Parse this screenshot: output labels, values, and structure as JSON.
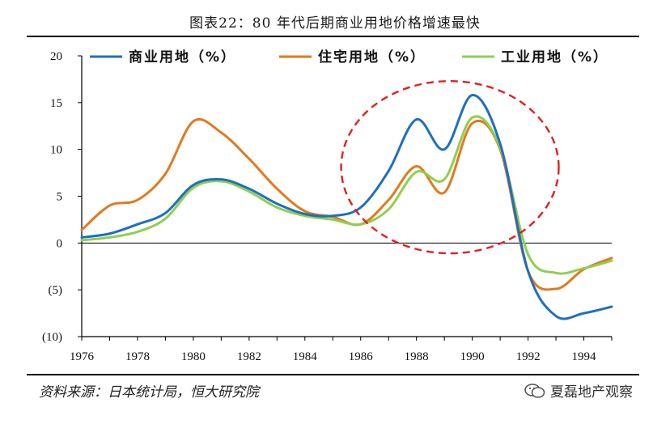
{
  "title": "图表22：80 年代后期商业用地价格增速最快",
  "source": "资料来源：日本统计局，恒大研究院",
  "watermark": "夏磊地产观察",
  "colors": {
    "commercial": "#1f6fbf",
    "residential": "#e07a1f",
    "industrial": "#8fcf4f",
    "negative_tick": "#c00000",
    "ellipse": "#e02020"
  },
  "chart_data": {
    "type": "line",
    "x": [
      1976,
      1977,
      1978,
      1979,
      1980,
      1981,
      1982,
      1983,
      1984,
      1985,
      1986,
      1987,
      1988,
      1989,
      1990,
      1991,
      1992,
      1993,
      1994,
      1995
    ],
    "series": [
      {
        "name": "商业用地（%）",
        "color": "#1f6fbf",
        "values": [
          0.6,
          1.0,
          2.0,
          3.2,
          6.2,
          6.8,
          5.8,
          4.2,
          3.1,
          2.9,
          3.8,
          7.7,
          13.2,
          10.0,
          15.8,
          10.6,
          -3.0,
          -7.8,
          -7.5,
          -6.8
        ]
      },
      {
        "name": "住宅用地（%）",
        "color": "#e07a1f",
        "values": [
          1.4,
          4.0,
          4.6,
          7.4,
          13.0,
          11.8,
          9.0,
          5.8,
          3.4,
          2.8,
          2.0,
          4.6,
          8.2,
          5.4,
          12.8,
          10.0,
          -3.0,
          -4.9,
          -2.8,
          -1.6
        ]
      },
      {
        "name": "工业用地（%）",
        "color": "#8fcf4f",
        "values": [
          0.3,
          0.6,
          1.2,
          2.6,
          5.9,
          6.6,
          5.5,
          3.8,
          2.9,
          2.5,
          2.0,
          3.6,
          7.6,
          6.8,
          13.4,
          10.2,
          -1.2,
          -3.2,
          -2.7,
          -1.9
        ]
      }
    ],
    "x_ticks": [
      1976,
      1978,
      1980,
      1982,
      1984,
      1986,
      1988,
      1990,
      1992,
      1994
    ],
    "y_ticks": [
      {
        "value": 20,
        "label": "20"
      },
      {
        "value": 15,
        "label": "15"
      },
      {
        "value": 10,
        "label": "10"
      },
      {
        "value": 5,
        "label": "5"
      },
      {
        "value": 0,
        "label": "0"
      },
      {
        "value": -5,
        "label": "(5)"
      },
      {
        "value": -10,
        "label": "(10)"
      }
    ],
    "xlim": [
      1976,
      1995
    ],
    "ylim": [
      -10,
      20
    ],
    "annotation": "dashed-ellipse-highlight-1985-1992",
    "legend_position": "top"
  }
}
